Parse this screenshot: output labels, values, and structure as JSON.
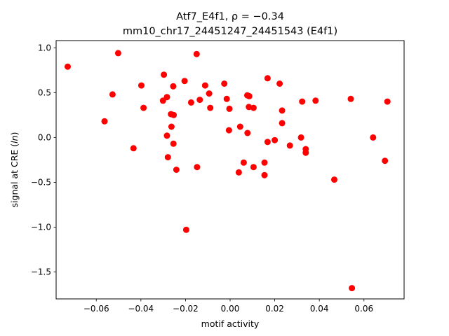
{
  "chart_data": {
    "type": "scatter",
    "title_line1": "Atf7_E4f1, ρ = −0.34",
    "title_line2": "mm10_chr17_24451247_24451543 (E4f1)",
    "xlabel": "motif activity",
    "ylabel": "signal at CRE (ln)",
    "xlim": [
      -0.078,
      0.078
    ],
    "ylim": [
      -1.8,
      1.08
    ],
    "xticks": [
      -0.06,
      -0.04,
      -0.02,
      0.0,
      0.02,
      0.04,
      0.06
    ],
    "xtick_labels": [
      "−0.06",
      "−0.04",
      "−0.02",
      "0.00",
      "0.02",
      "0.04",
      "0.06"
    ],
    "yticks": [
      1.0,
      0.5,
      0.0,
      -0.5,
      -1.0,
      -1.5
    ],
    "ytick_labels": [
      "1.0",
      "0.5",
      "0.0",
      "−0.5",
      "−1.0",
      "−1.5"
    ],
    "grid": false,
    "marker_color": "#ff0000",
    "points": [
      [
        -0.0728,
        0.79
      ],
      [
        -0.0502,
        0.94
      ],
      [
        -0.0527,
        0.48
      ],
      [
        -0.0563,
        0.18
      ],
      [
        -0.0433,
        -0.12
      ],
      [
        -0.0398,
        0.58
      ],
      [
        -0.0388,
        0.33
      ],
      [
        -0.0297,
        0.7
      ],
      [
        -0.0301,
        0.41
      ],
      [
        -0.0283,
        0.45
      ],
      [
        -0.0283,
        0.02
      ],
      [
        -0.0279,
        -0.22
      ],
      [
        -0.0265,
        0.26
      ],
      [
        -0.0263,
        0.12
      ],
      [
        -0.0255,
        0.57
      ],
      [
        -0.0253,
        0.25
      ],
      [
        -0.0254,
        -0.07
      ],
      [
        -0.0241,
        -0.36
      ],
      [
        -0.0204,
        0.63
      ],
      [
        -0.0197,
        -1.03
      ],
      [
        -0.0175,
        0.39
      ],
      [
        -0.015,
        0.93
      ],
      [
        -0.0148,
        -0.33
      ],
      [
        -0.0136,
        0.42
      ],
      [
        -0.0112,
        0.58
      ],
      [
        -0.0094,
        0.49
      ],
      [
        -0.0089,
        0.33
      ],
      [
        -0.0026,
        0.6
      ],
      [
        -0.0015,
        0.43
      ],
      [
        -0.0003,
        0.32
      ],
      [
        -0.0005,
        0.08
      ],
      [
        0.0039,
        -0.39
      ],
      [
        0.0045,
        0.12
      ],
      [
        0.0061,
        -0.28
      ],
      [
        0.0077,
        0.47
      ],
      [
        0.0086,
        0.46
      ],
      [
        0.0084,
        0.34
      ],
      [
        0.0078,
        0.05
      ],
      [
        0.0105,
        0.33
      ],
      [
        0.0105,
        -0.33
      ],
      [
        0.0154,
        -0.28
      ],
      [
        0.0154,
        -0.42
      ],
      [
        0.0168,
        0.66
      ],
      [
        0.0168,
        -0.05
      ],
      [
        0.02,
        -0.03
      ],
      [
        0.0222,
        0.6
      ],
      [
        0.0233,
        0.3
      ],
      [
        0.0233,
        0.16
      ],
      [
        0.0268,
        -0.09
      ],
      [
        0.0318,
        0.0
      ],
      [
        0.0323,
        0.4
      ],
      [
        0.0339,
        -0.13
      ],
      [
        0.0339,
        -0.17
      ],
      [
        0.0383,
        0.41
      ],
      [
        0.0467,
        -0.47
      ],
      [
        0.0541,
        0.43
      ],
      [
        0.0546,
        -1.68
      ],
      [
        0.0641,
        0.0
      ],
      [
        0.0694,
        -0.26
      ],
      [
        0.0705,
        0.4
      ]
    ]
  }
}
